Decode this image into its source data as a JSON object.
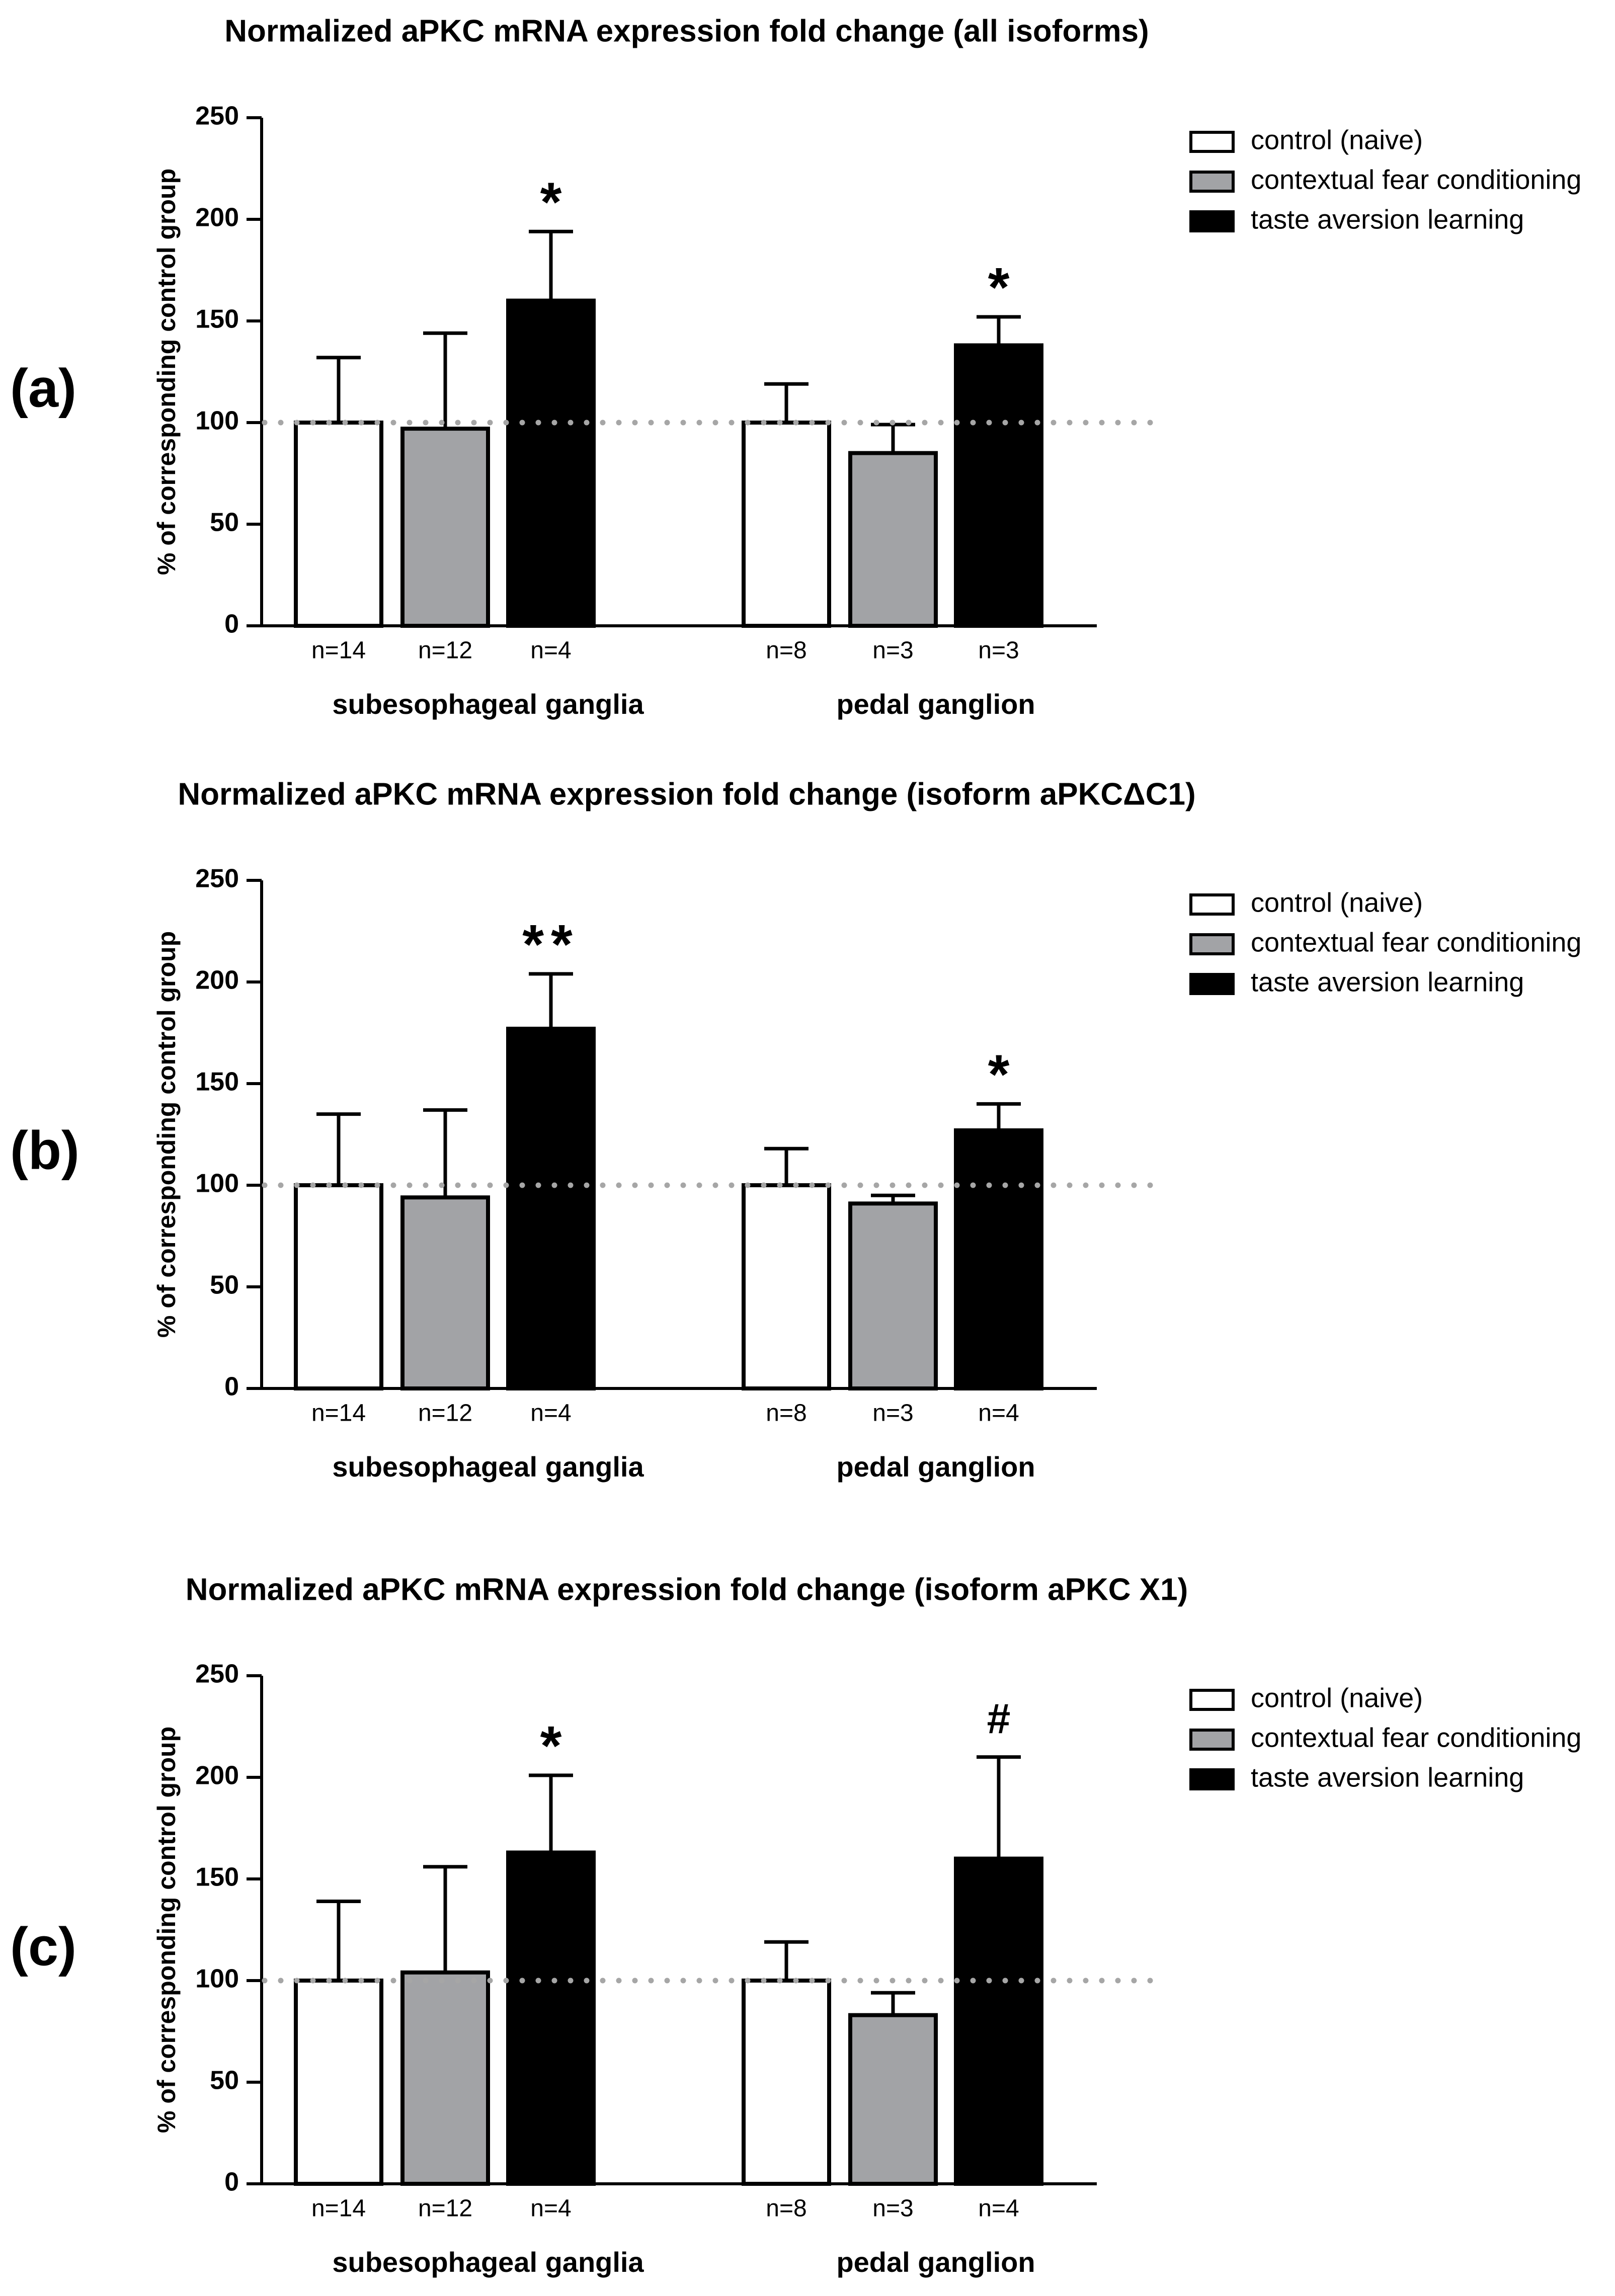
{
  "colors": {
    "control": "#ffffff",
    "contextual": "#a2a3a6",
    "taste": "#000000",
    "reference_line": "#a6a6a6",
    "axis": "#000000"
  },
  "chart_data": [
    {
      "type": "bar",
      "panel_label": "(a)",
      "title": "Normalized aPKC mRNA expression fold change (all isoforms)",
      "ylabel": "% of corresponding control group",
      "xlabel": "",
      "ylim": [
        0,
        250
      ],
      "yticks": [
        0,
        50,
        100,
        150,
        200,
        250
      ],
      "reference_line": 100,
      "legend": [
        "control (naive)",
        "contextual fear conditioning",
        "taste aversion learning"
      ],
      "legend_position": "top-right",
      "groups": [
        {
          "name": "subesophageal ganglia",
          "bars": [
            {
              "series": "control (naive)",
              "value": 100,
              "error": 32,
              "n": "n=14",
              "sig": ""
            },
            {
              "series": "contextual fear conditioning",
              "value": 97,
              "error": 47,
              "n": "n=12",
              "sig": ""
            },
            {
              "series": "taste aversion learning",
              "value": 160,
              "error": 34,
              "n": "n=4",
              "sig": "*"
            }
          ]
        },
        {
          "name": "pedal ganglion",
          "bars": [
            {
              "series": "control (naive)",
              "value": 100,
              "error": 19,
              "n": "n=8",
              "sig": ""
            },
            {
              "series": "contextual fear conditioning",
              "value": 85,
              "error": 14,
              "n": "n=3",
              "sig": ""
            },
            {
              "series": "taste aversion learning",
              "value": 138,
              "error": 14,
              "n": "n=3",
              "sig": "*"
            }
          ]
        }
      ]
    },
    {
      "type": "bar",
      "panel_label": "(b)",
      "title": "Normalized aPKC mRNA expression fold change (isoform aPKCΔC1)",
      "ylabel": "% of corresponding control group",
      "xlabel": "",
      "ylim": [
        0,
        250
      ],
      "yticks": [
        0,
        50,
        100,
        150,
        200,
        250
      ],
      "reference_line": 100,
      "legend": [
        "control (naive)",
        "contextual fear conditioning",
        "taste aversion learning"
      ],
      "legend_position": "top-right",
      "groups": [
        {
          "name": "subesophageal ganglia",
          "bars": [
            {
              "series": "control (naive)",
              "value": 100,
              "error": 35,
              "n": "n=14",
              "sig": ""
            },
            {
              "series": "contextual fear conditioning",
              "value": 94,
              "error": 43,
              "n": "n=12",
              "sig": ""
            },
            {
              "series": "taste aversion learning",
              "value": 177,
              "error": 27,
              "n": "n=4",
              "sig": "**"
            }
          ]
        },
        {
          "name": "pedal ganglion",
          "bars": [
            {
              "series": "control (naive)",
              "value": 100,
              "error": 18,
              "n": "n=8",
              "sig": ""
            },
            {
              "series": "contextual fear conditioning",
              "value": 91,
              "error": 4,
              "n": "n=3",
              "sig": ""
            },
            {
              "series": "taste aversion learning",
              "value": 127,
              "error": 13,
              "n": "n=4",
              "sig": "*"
            }
          ]
        }
      ]
    },
    {
      "type": "bar",
      "panel_label": "(c)",
      "title": "Normalized aPKC mRNA expression fold change (isoform aPKC X1)",
      "ylabel": "% of corresponding control group",
      "xlabel": "",
      "ylim": [
        0,
        250
      ],
      "yticks": [
        0,
        50,
        100,
        150,
        200,
        250
      ],
      "reference_line": 100,
      "legend": [
        "control (naive)",
        "contextual fear conditioning",
        "taste aversion learning"
      ],
      "legend_position": "top-right",
      "groups": [
        {
          "name": "subesophageal ganglia",
          "bars": [
            {
              "series": "control (naive)",
              "value": 100,
              "error": 39,
              "n": "n=14",
              "sig": ""
            },
            {
              "series": "contextual fear conditioning",
              "value": 104,
              "error": 52,
              "n": "n=12",
              "sig": ""
            },
            {
              "series": "taste aversion learning",
              "value": 163,
              "error": 38,
              "n": "n=4",
              "sig": "*"
            }
          ]
        },
        {
          "name": "pedal ganglion",
          "bars": [
            {
              "series": "control (naive)",
              "value": 100,
              "error": 19,
              "n": "n=8",
              "sig": ""
            },
            {
              "series": "contextual fear conditioning",
              "value": 83,
              "error": 11,
              "n": "n=3",
              "sig": ""
            },
            {
              "series": "taste aversion learning",
              "value": 160,
              "error": 50,
              "n": "n=4",
              "sig": "#"
            }
          ]
        }
      ]
    }
  ]
}
